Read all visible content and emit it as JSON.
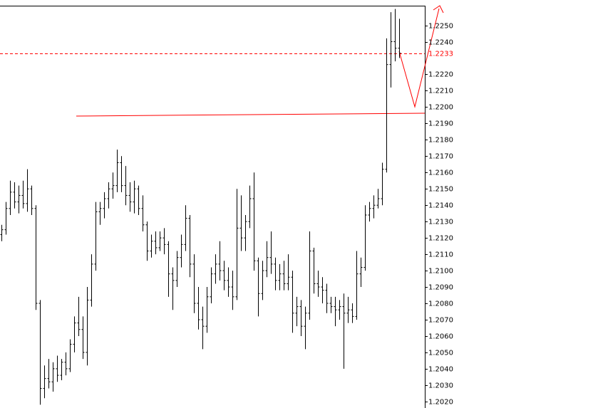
{
  "chart_data": {
    "type": "ohlc",
    "color": "#000000",
    "series": [
      {
        "name": "open",
        "values": [
          1.2122,
          1.2125,
          1.2138,
          1.2148,
          1.2142,
          1.2146,
          1.2141,
          1.215,
          1.2138,
          1.208,
          1.2028,
          1.2034,
          1.2032,
          1.204,
          1.2036,
          1.2044,
          1.204,
          1.2055,
          1.2068,
          1.2064,
          1.205,
          1.2082,
          1.2104,
          1.2136,
          1.2138,
          1.2144,
          1.215,
          1.2152,
          1.2166,
          1.2152,
          1.2146,
          1.2142,
          1.215,
          1.2138,
          1.2128,
          1.2112,
          1.2118,
          1.2114,
          1.212,
          1.2116,
          1.2098,
          1.2094,
          1.2108,
          1.2116,
          1.2132,
          1.2104,
          1.208,
          1.207,
          1.2066,
          1.2084,
          1.2098,
          1.2104,
          1.21,
          1.2094,
          1.209,
          1.2084,
          1.2126,
          1.212,
          1.213,
          1.2144,
          1.2106,
          1.2086,
          1.21,
          1.2108,
          1.2104,
          1.2094,
          1.2098,
          1.2092,
          1.2096,
          1.2074,
          1.2078,
          1.2066,
          1.2074,
          1.2112,
          1.2092,
          1.209,
          1.2088,
          1.208,
          1.2078,
          1.2076,
          1.2078,
          1.2074,
          1.2076,
          1.2072,
          1.2098,
          1.2102,
          1.2134,
          1.2138,
          1.214,
          1.2144,
          1.2162,
          1.2226,
          1.224,
          1.2236
        ]
      },
      {
        "name": "high",
        "values": [
          1.2128,
          1.2142,
          1.2155,
          1.2154,
          1.2152,
          1.2155,
          1.2162,
          1.2152,
          1.214,
          1.2082,
          1.2042,
          1.2046,
          1.2044,
          1.2048,
          1.2046,
          1.205,
          1.2058,
          1.2072,
          1.2084,
          1.2072,
          1.209,
          1.211,
          1.2142,
          1.2142,
          1.2148,
          1.2154,
          1.216,
          1.2174,
          1.217,
          1.2164,
          1.2154,
          1.2155,
          1.2152,
          1.2146,
          1.213,
          1.2122,
          1.2124,
          1.2124,
          1.2126,
          1.2118,
          1.2102,
          1.2112,
          1.2122,
          1.214,
          1.2134,
          1.211,
          1.209,
          1.2078,
          1.209,
          1.2102,
          1.211,
          1.2118,
          1.2106,
          1.2102,
          1.21,
          1.215,
          1.2146,
          1.2134,
          1.2152,
          1.216,
          1.2108,
          1.2106,
          1.2118,
          1.2124,
          1.2108,
          1.2104,
          1.2106,
          1.211,
          1.21,
          1.2084,
          1.2082,
          1.2078,
          1.2124,
          1.2114,
          1.21,
          1.2096,
          1.2092,
          1.2084,
          1.2084,
          1.2082,
          1.2086,
          1.2084,
          1.208,
          1.2112,
          1.2108,
          1.214,
          1.2142,
          1.2146,
          1.215,
          1.2166,
          1.2242,
          1.2258,
          1.226,
          1.2254
        ]
      },
      {
        "name": "low",
        "values": [
          1.2118,
          1.2122,
          1.2134,
          1.2138,
          1.2135,
          1.2138,
          1.2136,
          1.2134,
          1.2076,
          1.2018,
          1.2022,
          1.2028,
          1.2026,
          1.2032,
          1.2033,
          1.2036,
          1.2038,
          1.205,
          1.206,
          1.2046,
          1.2042,
          1.2078,
          1.21,
          1.2128,
          1.2132,
          1.2138,
          1.2144,
          1.2148,
          1.2148,
          1.214,
          1.2136,
          1.2135,
          1.2134,
          1.2124,
          1.2106,
          1.2108,
          1.211,
          1.2112,
          1.211,
          1.2084,
          1.2076,
          1.209,
          1.2102,
          1.2112,
          1.2096,
          1.2074,
          1.2064,
          1.2052,
          1.2062,
          1.208,
          1.2092,
          1.2094,
          1.2088,
          1.2084,
          1.2076,
          1.2082,
          1.2112,
          1.2112,
          1.2126,
          1.21,
          1.2072,
          1.2082,
          1.2096,
          1.2098,
          1.2088,
          1.2088,
          1.2088,
          1.2088,
          1.2062,
          1.2066,
          1.206,
          1.2052,
          1.207,
          1.2086,
          1.2084,
          1.208,
          1.2074,
          1.2074,
          1.2066,
          1.207,
          1.204,
          1.2068,
          1.2068,
          1.207,
          1.209,
          1.21,
          1.213,
          1.2132,
          1.2138,
          1.214,
          1.216,
          1.2212,
          1.2228,
          1.223
        ]
      },
      {
        "name": "close",
        "values": [
          1.2125,
          1.2138,
          1.2148,
          1.2142,
          1.2146,
          1.2141,
          1.215,
          1.2138,
          1.208,
          1.2028,
          1.2034,
          1.2032,
          1.204,
          1.2036,
          1.2044,
          1.204,
          1.2055,
          1.2068,
          1.2064,
          1.205,
          1.2082,
          1.2104,
          1.2136,
          1.2138,
          1.2144,
          1.215,
          1.2152,
          1.2166,
          1.2152,
          1.2146,
          1.2142,
          1.215,
          1.2138,
          1.2128,
          1.2112,
          1.2118,
          1.2114,
          1.212,
          1.2116,
          1.2098,
          1.2094,
          1.2108,
          1.2116,
          1.2132,
          1.2104,
          1.208,
          1.207,
          1.2066,
          1.2084,
          1.2098,
          1.2104,
          1.21,
          1.2094,
          1.209,
          1.2084,
          1.2126,
          1.212,
          1.213,
          1.2144,
          1.2106,
          1.2086,
          1.21,
          1.2108,
          1.2104,
          1.2094,
          1.2098,
          1.2092,
          1.2096,
          1.2074,
          1.2078,
          1.2066,
          1.2074,
          1.2112,
          1.2092,
          1.209,
          1.2088,
          1.208,
          1.2078,
          1.2076,
          1.2078,
          1.2074,
          1.2076,
          1.2072,
          1.2098,
          1.2102,
          1.2134,
          1.2138,
          1.214,
          1.2144,
          1.2162,
          1.2226,
          1.224,
          1.2236,
          1.2233
        ]
      }
    ],
    "ylim": [
      1.2016,
      1.2262
    ],
    "yticks": [
      {
        "value": 1.225,
        "label": "1.2250"
      },
      {
        "value": 1.224,
        "label": "1.2240"
      },
      {
        "value": 1.222,
        "label": "1.2220"
      },
      {
        "value": 1.221,
        "label": "1.2210"
      },
      {
        "value": 1.22,
        "label": "1.2200"
      },
      {
        "value": 1.219,
        "label": "1.2190"
      },
      {
        "value": 1.218,
        "label": "1.2180"
      },
      {
        "value": 1.217,
        "label": "1.2170"
      },
      {
        "value": 1.216,
        "label": "1.2160"
      },
      {
        "value": 1.215,
        "label": "1.2150"
      },
      {
        "value": 1.214,
        "label": "1.2140"
      },
      {
        "value": 1.213,
        "label": "1.2130"
      },
      {
        "value": 1.212,
        "label": "1.2120"
      },
      {
        "value": 1.211,
        "label": "1.2110"
      },
      {
        "value": 1.21,
        "label": "1.2100"
      },
      {
        "value": 1.209,
        "label": "1.2090"
      },
      {
        "value": 1.208,
        "label": "1.2080"
      },
      {
        "value": 1.207,
        "label": "1.2070"
      },
      {
        "value": 1.206,
        "label": "1.2060"
      },
      {
        "value": 1.205,
        "label": "1.2050"
      },
      {
        "value": 1.204,
        "label": "1.2040"
      },
      {
        "value": 1.203,
        "label": "1.2030"
      },
      {
        "value": 1.202,
        "label": "1.2020"
      }
    ],
    "price_line": {
      "value": 1.2233,
      "color": "#ff0000"
    }
  }
}
